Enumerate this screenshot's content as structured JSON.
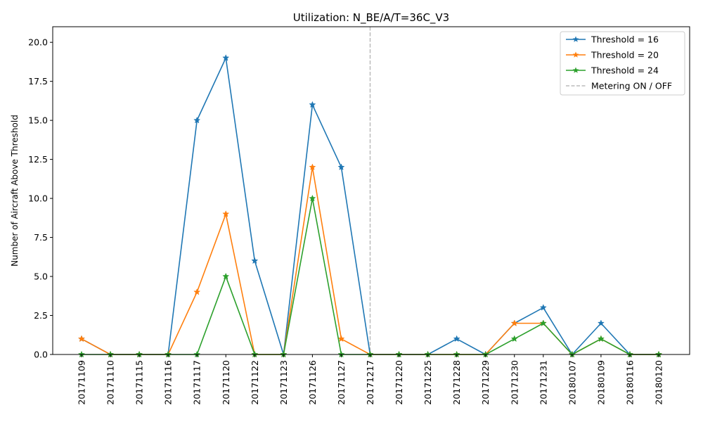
{
  "chart_data": {
    "type": "line",
    "title": "Utilization: N_BE/A/T=36C_V3",
    "xlabel": "",
    "ylabel": "Number of Aircraft Above Threshold",
    "ylim": [
      0,
      21
    ],
    "yticks": [
      "0.0",
      "2.5",
      "5.0",
      "7.5",
      "10.0",
      "12.5",
      "15.0",
      "17.5",
      "20.0"
    ],
    "ytick_values": [
      0,
      2.5,
      5,
      7.5,
      10,
      12.5,
      15,
      17.5,
      20
    ],
    "categories": [
      "20171109",
      "20171110",
      "20171115",
      "20171116",
      "20171117",
      "20171120",
      "20171122",
      "20171123",
      "20171126",
      "20171127",
      "20171217",
      "20171220",
      "20171225",
      "20171228",
      "20171229",
      "20171230",
      "20171231",
      "20180107",
      "20180109",
      "20180116",
      "20180120"
    ],
    "grid": false,
    "legend_position": "top-right",
    "series": [
      {
        "name": "Threshold = 16",
        "color": "#1f77b4",
        "values": [
          1,
          0,
          0,
          0,
          15,
          19,
          6,
          0,
          16,
          12,
          0,
          0,
          0,
          1,
          0,
          2,
          3,
          0,
          2,
          0,
          0
        ]
      },
      {
        "name": "Threshold = 20",
        "color": "#ff7f0e",
        "values": [
          1,
          0,
          0,
          0,
          4,
          9,
          0,
          0,
          12,
          1,
          0,
          0,
          0,
          0,
          0,
          2,
          2,
          0,
          1,
          0,
          0
        ]
      },
      {
        "name": "Threshold = 24",
        "color": "#2ca02c",
        "values": [
          0,
          0,
          0,
          0,
          0,
          5,
          0,
          0,
          10,
          0,
          0,
          0,
          0,
          0,
          0,
          1,
          2,
          0,
          1,
          0,
          0
        ]
      }
    ],
    "vline": {
      "category": "20171217",
      "label": "Metering ON / OFF",
      "color": "#bbbbbb"
    }
  }
}
